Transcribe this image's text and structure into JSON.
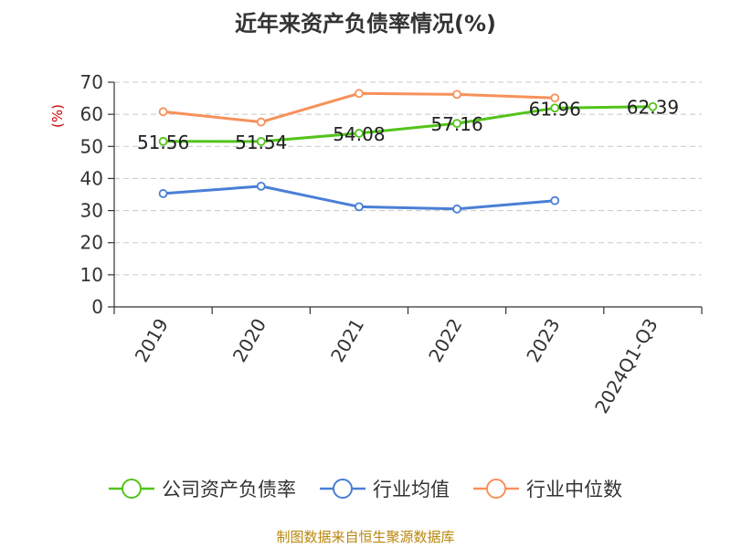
{
  "chart_data": {
    "type": "line",
    "title": "近年来资产负债率情况(%)",
    "ylabel": "(%)",
    "xlabel": "",
    "ylim": [
      0,
      70
    ],
    "yticks": [
      0,
      10,
      20,
      30,
      40,
      50,
      60,
      70
    ],
    "grid": true,
    "legend_position": "bottom",
    "categories": [
      "2019",
      "2020",
      "2021",
      "2022",
      "2023",
      "2024Q1-Q3"
    ],
    "series": [
      {
        "name": "公司资产负债率",
        "color": "#52c41a",
        "values": [
          51.56,
          51.54,
          54.08,
          57.16,
          61.96,
          62.39
        ],
        "labels": [
          "51.56",
          "51.54",
          "54.08",
          "57.16",
          "61.96",
          "62.39"
        ]
      },
      {
        "name": "行业均值",
        "color": "#4a7fd6",
        "values": [
          35.3,
          37.6,
          31.2,
          30.5,
          33.1,
          null
        ]
      },
      {
        "name": "行业中位数",
        "color": "#f7915a",
        "values": [
          60.8,
          57.6,
          66.5,
          66.2,
          65.1,
          null
        ]
      }
    ]
  },
  "source_note": "制图数据来自恒生聚源数据库"
}
